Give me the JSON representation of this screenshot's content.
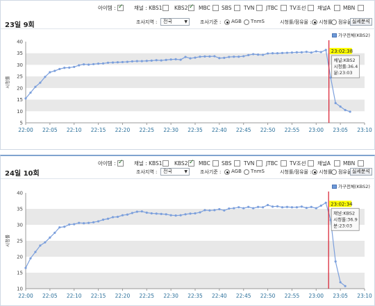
{
  "colors": {
    "band": "#e8e8e8",
    "line": "#7b9fdc",
    "point": "#7b9fdc",
    "marker": "#d8182b",
    "highlight": "#ffff00",
    "legend_swatch": "#6e9ad8"
  },
  "filters": {
    "items": [
      {
        "label": "아이템 :",
        "checked": true
      },
      {
        "label": "채널 : KBS1",
        "checked": false
      },
      {
        "label": "KBS2",
        "checked": true
      },
      {
        "label": "MBC",
        "checked": false
      },
      {
        "label": "SBS",
        "checked": false
      },
      {
        "label": "TVN",
        "checked": false
      },
      {
        "label": "JTBC",
        "checked": false
      },
      {
        "label": "TV조선",
        "checked": false
      },
      {
        "label": "채널A",
        "checked": false
      },
      {
        "label": "MBN",
        "checked": false
      }
    ]
  },
  "controls": {
    "region_label": "조사지역 :",
    "region_value": "전국",
    "target_label": "조사기준 :",
    "target_options": [
      "AGB",
      "TnmS"
    ],
    "metric_label": "시청률/점유율 :",
    "metric_options": [
      "시청률",
      "점유율"
    ],
    "realtime_button": "실세분석"
  },
  "panels": [
    {
      "title": "23일 9회",
      "marker_time": "23:02:38",
      "tooltip_lines": [
        "채널:KBS2",
        "시청률:36.4",
        "분:23:03"
      ],
      "legend": "가구전체(KBS2)"
    },
    {
      "title": "24일 10회",
      "marker_time": "23:02:34",
      "tooltip_lines": [
        "채널:KBS2",
        "시청률:36.9",
        "분:23:03"
      ],
      "legend": "가구전체(KBS2)"
    }
  ],
  "chart_data": [
    {
      "type": "line",
      "title": "23일 9회",
      "xlabel": "",
      "ylabel": "시청률",
      "ylim": [
        5,
        40
      ],
      "yticks": [
        5,
        10,
        15,
        20,
        25,
        30,
        35,
        40
      ],
      "xticks": [
        "22:00",
        "22:05",
        "22:10",
        "22:15",
        "22:20",
        "22:25",
        "22:30",
        "22:35",
        "22:40",
        "22:45",
        "22:50",
        "22:55",
        "23:00",
        "23:05",
        "23:10"
      ],
      "x_start_time": "22:00",
      "x_end_time": "23:10",
      "grid": "alternating horizontal bands",
      "legend_position": "top-right",
      "series": [
        {
          "name": "가구전체(KBS2)",
          "x": [
            "22:00",
            "22:01",
            "22:02",
            "22:03",
            "22:04",
            "22:05",
            "22:06",
            "22:07",
            "22:08",
            "22:09",
            "22:10",
            "22:11",
            "22:12",
            "22:13",
            "22:14",
            "22:15",
            "22:16",
            "22:17",
            "22:18",
            "22:19",
            "22:20",
            "22:21",
            "22:22",
            "22:23",
            "22:24",
            "22:25",
            "22:26",
            "22:27",
            "22:28",
            "22:29",
            "22:30",
            "22:31",
            "22:32",
            "22:33",
            "22:34",
            "22:35",
            "22:36",
            "22:37",
            "22:38",
            "22:39",
            "22:40",
            "22:41",
            "22:42",
            "22:43",
            "22:44",
            "22:45",
            "22:46",
            "22:47",
            "22:48",
            "22:49",
            "22:50",
            "22:51",
            "22:52",
            "22:53",
            "22:54",
            "22:55",
            "22:56",
            "22:57",
            "22:58",
            "22:59",
            "23:00",
            "23:01",
            "23:02",
            "23:03",
            "23:04",
            "23:05",
            "23:06",
            "23:07"
          ],
          "values": [
            15.5,
            18,
            20.5,
            22.3,
            24.8,
            26.8,
            27.4,
            28.2,
            28.7,
            28.8,
            29.1,
            29.8,
            30.2,
            30.1,
            30.3,
            30.5,
            30.6,
            30.9,
            31.0,
            31.1,
            31.2,
            31.3,
            31.5,
            31.6,
            31.6,
            31.7,
            31.8,
            32.0,
            31.9,
            32.1,
            32.3,
            32.4,
            32.2,
            33.4,
            32.8,
            33.1,
            33.5,
            33.6,
            33.6,
            33.7,
            32.9,
            33.0,
            33.4,
            33.5,
            33.5,
            33.7,
            34.2,
            34.6,
            34.4,
            34.3,
            34.9,
            35.0,
            35.0,
            35.1,
            35.2,
            35.3,
            35.4,
            35.4,
            35.6,
            35.3,
            35.8,
            35.5,
            36.4,
            24.5,
            13.5,
            12.0,
            10.5,
            9.8
          ]
        }
      ],
      "marker_x": "23:02:38"
    },
    {
      "type": "line",
      "title": "24일 10회",
      "xlabel": "",
      "ylabel": "시청률",
      "ylim": [
        10,
        40
      ],
      "yticks": [
        10,
        15,
        20,
        25,
        30,
        35,
        40
      ],
      "xticks": [
        "22:00",
        "22:05",
        "22:10",
        "22:15",
        "22:20",
        "22:25",
        "22:30",
        "22:35",
        "22:40",
        "22:45",
        "22:50",
        "22:55",
        "23:00",
        "23:05",
        "23:10"
      ],
      "x_start_time": "22:00",
      "x_end_time": "23:10",
      "grid": "alternating horizontal bands",
      "legend_position": "top-right",
      "series": [
        {
          "name": "가구전체(KBS2)",
          "x": [
            "22:00",
            "22:01",
            "22:02",
            "22:03",
            "22:04",
            "22:05",
            "22:06",
            "22:07",
            "22:08",
            "22:09",
            "22:10",
            "22:11",
            "22:12",
            "22:13",
            "22:14",
            "22:15",
            "22:16",
            "22:17",
            "22:18",
            "22:19",
            "22:20",
            "22:21",
            "22:22",
            "22:23",
            "22:24",
            "22:25",
            "22:26",
            "22:27",
            "22:28",
            "22:29",
            "22:30",
            "22:31",
            "22:32",
            "22:33",
            "22:34",
            "22:35",
            "22:36",
            "22:37",
            "22:38",
            "22:39",
            "22:40",
            "22:41",
            "22:42",
            "22:43",
            "22:44",
            "22:45",
            "22:46",
            "22:47",
            "22:48",
            "22:49",
            "22:50",
            "22:51",
            "22:52",
            "22:53",
            "22:54",
            "22:55",
            "22:56",
            "22:57",
            "22:58",
            "22:59",
            "23:00",
            "23:01",
            "23:02",
            "23:03",
            "23:04",
            "23:05",
            "23:06"
          ],
          "values": [
            16.5,
            19.5,
            21.5,
            23.5,
            24.5,
            26.0,
            27.5,
            29.2,
            29.4,
            30.1,
            30.2,
            30.6,
            30.5,
            30.6,
            30.8,
            31.1,
            31.6,
            31.9,
            32.4,
            32.5,
            33.0,
            33.2,
            33.7,
            34.1,
            34.2,
            33.8,
            33.6,
            33.5,
            33.4,
            33.3,
            33.0,
            32.9,
            33.0,
            33.3,
            33.5,
            33.6,
            33.9,
            34.6,
            34.5,
            34.6,
            34.9,
            34.5,
            35.1,
            35.2,
            35.5,
            35.2,
            35.6,
            35.2,
            35.6,
            35.5,
            36.2,
            35.7,
            35.8,
            35.5,
            35.6,
            35.5,
            35.5,
            35.7,
            35.3,
            35.6,
            35.2,
            36.0,
            36.9,
            31.5,
            18.5,
            12.0,
            10.8
          ]
        }
      ],
      "marker_x": "23:02:34"
    }
  ]
}
